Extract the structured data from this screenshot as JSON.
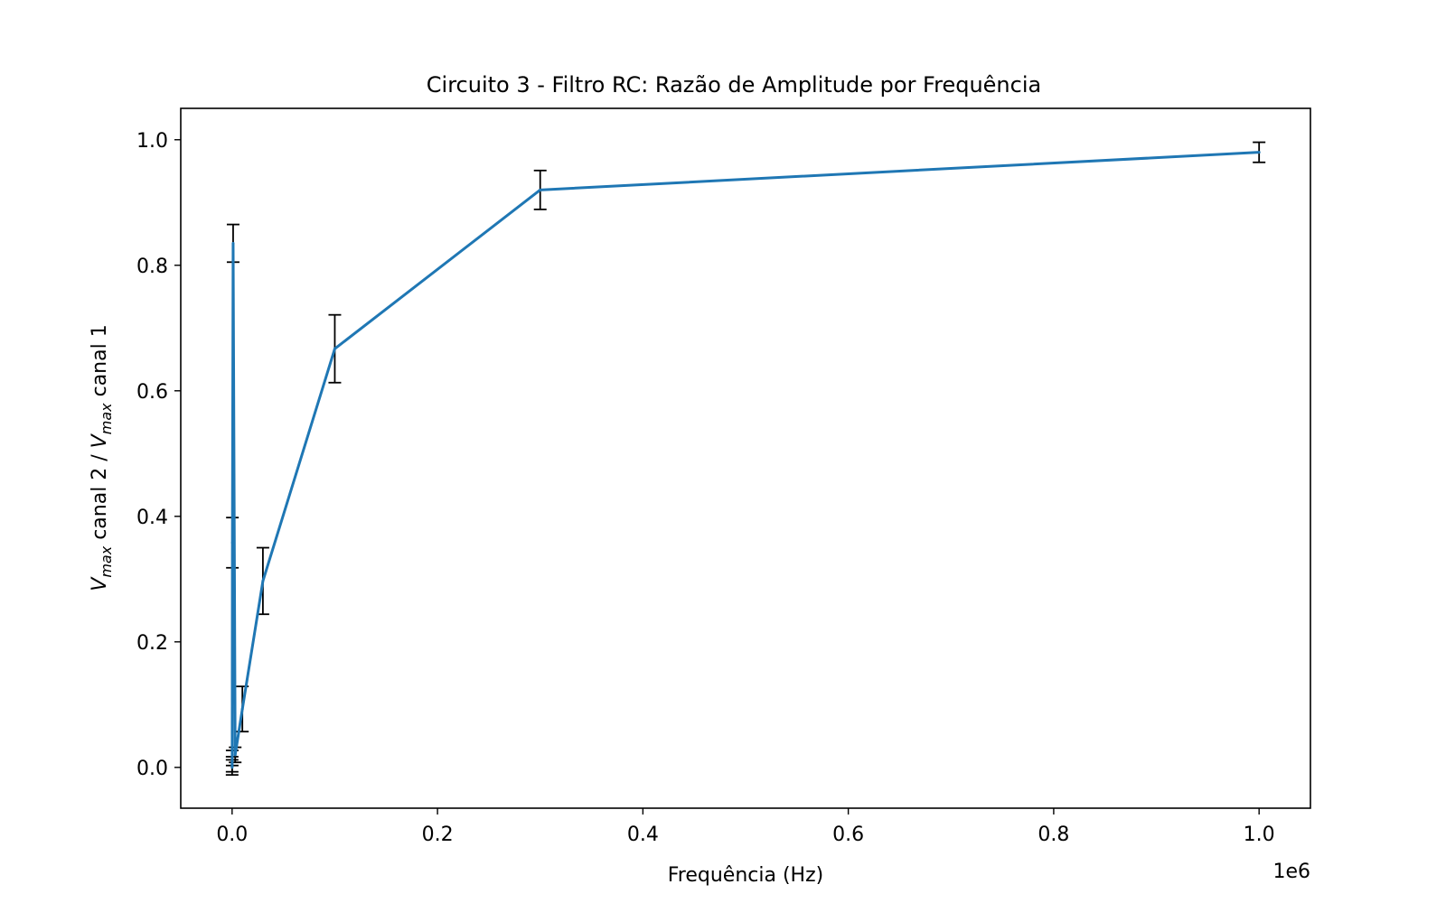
{
  "chart_data": {
    "type": "line",
    "title": "Circuito 3 - Filtro RC: Razão de Amplitude por Frequência",
    "xlabel": "Frequência (Hz)",
    "ylabel_parts": {
      "v1": "V",
      "sub1": "max",
      "mid": " canal 2 / ",
      "v2": "V",
      "sub2": "max",
      "tail": " canal 1"
    },
    "x_offset_label": "1e6",
    "xlim": [
      -50000,
      1050000
    ],
    "ylim": [
      -0.065,
      1.05
    ],
    "x_ticks": [
      0.0,
      0.2,
      0.4,
      0.6,
      0.8,
      1.0
    ],
    "x_tick_labels": [
      "0.0",
      "0.2",
      "0.4",
      "0.6",
      "0.8",
      "1.0"
    ],
    "x_tick_scale": 1000000,
    "y_ticks": [
      0.0,
      0.2,
      0.4,
      0.6,
      0.8,
      1.0
    ],
    "y_tick_labels": [
      "0.0",
      "0.2",
      "0.4",
      "0.6",
      "0.8",
      "1.0"
    ],
    "grid": false,
    "series": [
      {
        "color": "#1f77b4",
        "x": [
          10,
          30,
          100,
          300,
          1000,
          3000,
          10000,
          30000,
          100000,
          300000,
          1000000
        ],
        "y": [
          0.0,
          0.005,
          0.015,
          0.358,
          0.835,
          0.02,
          0.093,
          0.297,
          0.667,
          0.92,
          0.98
        ],
        "yerr": [
          0.012,
          0.012,
          0.012,
          0.04,
          0.03,
          0.012,
          0.036,
          0.053,
          0.054,
          0.031,
          0.016
        ]
      }
    ],
    "errorbar_color": "#000000"
  }
}
